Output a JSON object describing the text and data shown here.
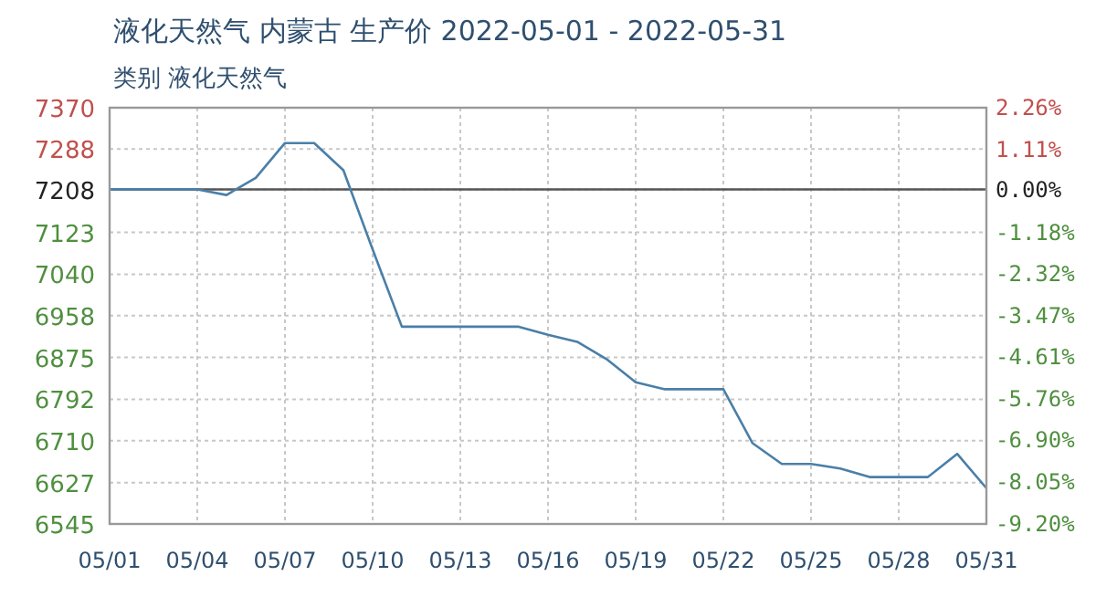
{
  "chart_data": {
    "type": "line",
    "title": "液化天然气 内蒙古 生产价 2022-05-01 - 2022-05-31",
    "subtitle": "类别 液化天然气",
    "x": [
      "2022-05-01",
      "2022-05-02",
      "2022-05-03",
      "2022-05-04",
      "2022-05-05",
      "2022-05-06",
      "2022-05-07",
      "2022-05-08",
      "2022-05-09",
      "2022-05-10",
      "2022-05-11",
      "2022-05-12",
      "2022-05-13",
      "2022-05-14",
      "2022-05-15",
      "2022-05-16",
      "2022-05-17",
      "2022-05-18",
      "2022-05-19",
      "2022-05-20",
      "2022-05-21",
      "2022-05-22",
      "2022-05-23",
      "2022-05-24",
      "2022-05-25",
      "2022-05-26",
      "2022-05-27",
      "2022-05-28",
      "2022-05-29",
      "2022-05-30",
      "2022-05-31"
    ],
    "series": [
      {
        "color": "#4a7fa8",
        "values": [
          7208,
          7208,
          7208,
          7208,
          7197,
          7231,
          7300,
          7300,
          7246,
          7089,
          6936,
          6936,
          6936,
          6936,
          6936,
          6920,
          6906,
          6872,
          6826,
          6812,
          6812,
          6812,
          6705,
          6664,
          6664,
          6655,
          6638,
          6638,
          6638,
          6684,
          6616
        ]
      }
    ],
    "xlim": [
      "2022-05-01",
      "2022-05-31"
    ],
    "xticks": [
      {
        "value": "2022-05-01",
        "label": "05/01"
      },
      {
        "value": "2022-05-04",
        "label": "05/04"
      },
      {
        "value": "2022-05-07",
        "label": "05/07"
      },
      {
        "value": "2022-05-10",
        "label": "05/10"
      },
      {
        "value": "2022-05-13",
        "label": "05/13"
      },
      {
        "value": "2022-05-16",
        "label": "05/16"
      },
      {
        "value": "2022-05-19",
        "label": "05/19"
      },
      {
        "value": "2022-05-22",
        "label": "05/22"
      },
      {
        "value": "2022-05-25",
        "label": "05/25"
      },
      {
        "value": "2022-05-28",
        "label": "05/28"
      },
      {
        "value": "2022-05-31",
        "label": "05/31"
      }
    ],
    "ylim": [
      6545,
      7370
    ],
    "yticks": [
      7370,
      7288,
      7208,
      7123,
      7040,
      6958,
      6875,
      6792,
      6710,
      6627,
      6545
    ],
    "y2lim": [
      -9.2,
      2.26
    ],
    "y2ticks": [
      {
        "value": 2.26,
        "label": "2.26%"
      },
      {
        "value": 1.11,
        "label": "1.11%"
      },
      {
        "value": 0,
        "label": "0.00%"
      },
      {
        "value": -1.18,
        "label": "-1.18%"
      },
      {
        "value": -2.32,
        "label": "-2.32%"
      },
      {
        "value": -3.47,
        "label": "-3.47%"
      },
      {
        "value": -4.61,
        "label": "-4.61%"
      },
      {
        "value": -5.76,
        "label": "-5.76%"
      },
      {
        "value": -6.9,
        "label": "-6.90%"
      },
      {
        "value": -8.05,
        "label": "-8.05%"
      },
      {
        "value": -9.2,
        "label": "-9.20%"
      }
    ],
    "ref_lines": [
      {
        "axis": "y",
        "value": 7208,
        "color": "#555555"
      }
    ],
    "grid": true,
    "marker": "none",
    "line_style": "solid"
  }
}
